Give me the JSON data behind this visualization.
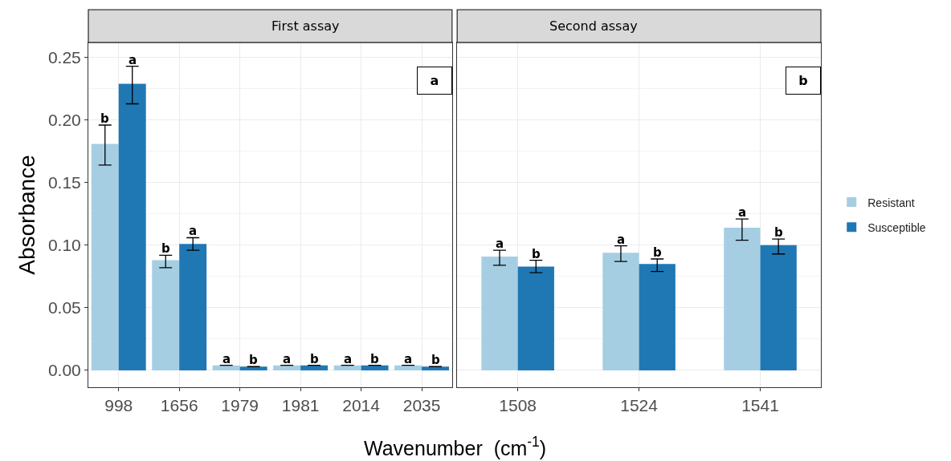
{
  "chart_data": [
    {
      "type": "bar",
      "title": "First assay",
      "ylabel": "Absorbance",
      "xlabel": "Wavenumber  (cm$^{-1}$)",
      "categories": [
        "998",
        "1656",
        "1979",
        "1981",
        "2014",
        "2035"
      ],
      "ylim": [
        -0.0135,
        0.262
      ],
      "yticks": [
        {
          "value": 0,
          "label": "0.00"
        },
        0.05,
        {
          "value": 0.1,
          "label": "0.10"
        },
        0.15,
        {
          "value": 0.2,
          "label": "0.20"
        },
        0.25
      ],
      "grid": true,
      "legend": "right",
      "annotations": [
        "a"
      ],
      "series": [
        {
          "name": "Resistant",
          "color": "#a6cee3",
          "values": [
            0.181,
            0.088,
            0.004,
            0.004,
            0.004,
            0.004
          ],
          "errors": [
            [
              0.164,
              0.196
            ],
            [
              0.082,
              0.092
            ],
            null,
            null,
            null,
            null
          ],
          "value_labels": [
            "b",
            "b",
            "a",
            "a",
            "a",
            "a"
          ]
        },
        {
          "name": "Susceptible",
          "color": "#1f78b4",
          "values": [
            0.229,
            0.101,
            0.003,
            0.004,
            0.004,
            0.003
          ],
          "errors": [
            [
              0.213,
              0.243
            ],
            [
              0.096,
              0.106
            ],
            null,
            null,
            null,
            null
          ],
          "value_labels": [
            "a",
            "a",
            "b",
            "b",
            "b",
            "b"
          ]
        }
      ]
    },
    {
      "type": "bar",
      "title": "Second assay",
      "categories": [
        "1508",
        "1524",
        "1541"
      ],
      "ylim": [
        -0.0135,
        0.262
      ],
      "yticks": [
        0,
        0.05,
        0.1,
        0.15,
        0.2,
        0.25
      ],
      "grid": true,
      "tick_labels": "x",
      "annotations": [
        "b"
      ],
      "series": [
        {
          "color": "#a6cee3",
          "values": [
            0.091,
            0.094,
            0.114
          ],
          "errors": [
            [
              0.084,
              0.096
            ],
            [
              0.087,
              0.0995
            ],
            [
              0.104,
              0.121
            ]
          ],
          "value_labels": [
            "a",
            "a",
            "a"
          ]
        },
        {
          "color": "#1f78b4",
          "values": [
            0.083,
            0.085,
            0.1
          ],
          "errors": [
            [
              0.078,
              0.088
            ],
            [
              0.079,
              0.089
            ],
            [
              0.093,
              0.105
            ]
          ],
          "value_labels": [
            "b",
            "b",
            "b"
          ]
        }
      ]
    }
  ]
}
